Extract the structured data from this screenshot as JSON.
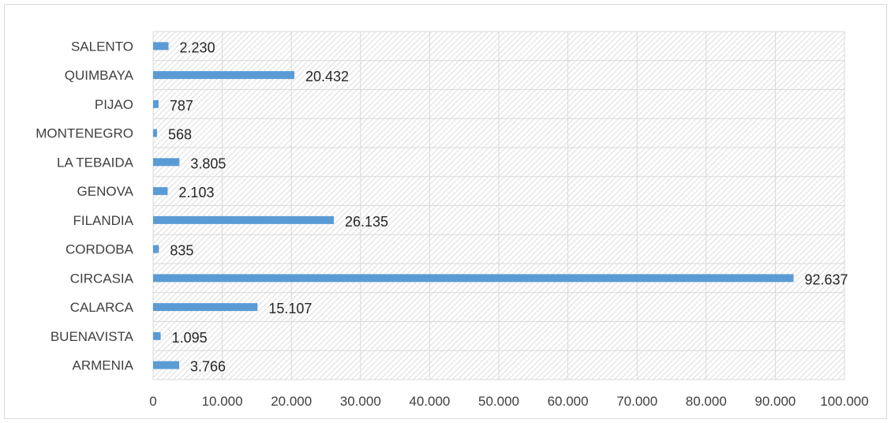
{
  "chart_data": {
    "type": "bar",
    "orientation": "horizontal",
    "categories": [
      "ARMENIA",
      "BUENAVISTA",
      "CALARCA",
      "CIRCASIA",
      "CORDOBA",
      "FILANDIA",
      "GENOVA",
      "LA TEBAIDA",
      "MONTENEGRO",
      "PIJAO",
      "QUIMBAYA",
      "SALENTO"
    ],
    "values": [
      3766,
      1095,
      15107,
      92637,
      835,
      26135,
      2103,
      3805,
      568,
      787,
      20432,
      2230
    ],
    "value_labels": [
      "3.766",
      "1.095",
      "15.107",
      "92.637",
      "835",
      "26.135",
      "2.103",
      "3.805",
      "568",
      "787",
      "20.432",
      "2.230"
    ],
    "xlim": [
      0,
      100000
    ],
    "x_ticks": [
      0,
      10000,
      20000,
      30000,
      40000,
      50000,
      60000,
      70000,
      80000,
      90000,
      100000
    ],
    "x_tick_labels": [
      "0",
      "10.000",
      "20.000",
      "30.000",
      "40.000",
      "50.000",
      "60.000",
      "70.000",
      "80.000",
      "90.000",
      "100.000"
    ],
    "title": "",
    "xlabel": "",
    "ylabel": "",
    "grid": true,
    "legend": "none",
    "bar_color": "#5b9bd5",
    "plot_background": "hatched light gray"
  }
}
